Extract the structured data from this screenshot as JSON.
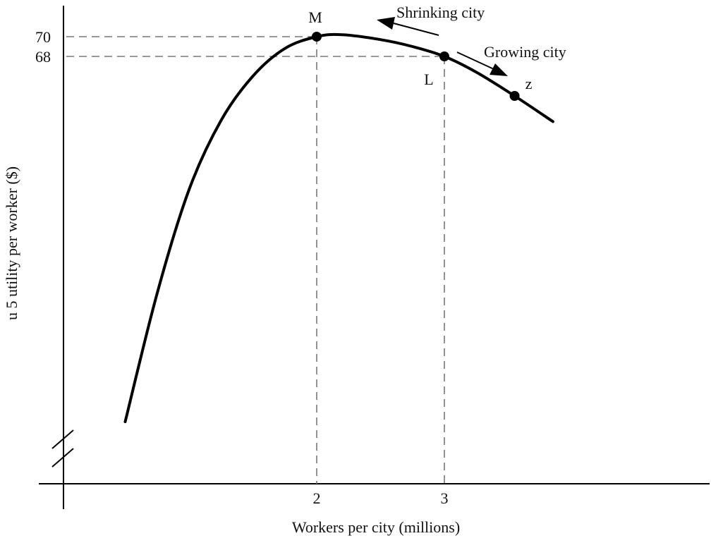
{
  "chart_data": {
    "type": "line",
    "title": "",
    "xlabel": "Workers per city (millions)",
    "ylabel": "u 5 utility per worker ($)",
    "xlim": [
      0.0,
      5.0
    ],
    "ylim": [
      0,
      70
    ],
    "x_ticks": [
      {
        "value": 2,
        "label": "2"
      },
      {
        "value": 3,
        "label": "3"
      }
    ],
    "y_ticks": [
      {
        "value": 70,
        "label": "70"
      },
      {
        "value": 68,
        "label": "68"
      }
    ],
    "grid": false,
    "axis_break": "y-axis",
    "series": [
      {
        "x": [
          0.5,
          0.75,
          1.0,
          1.25,
          1.5,
          1.75,
          2.0,
          2.2,
          2.5,
          2.75,
          3.0,
          3.25,
          3.55,
          3.85
        ],
        "y": [
          31,
          44,
          54.5,
          61.5,
          66,
          68.8,
          70,
          70.2,
          69.7,
          69,
          68,
          66.4,
          64,
          61.4
        ]
      }
    ],
    "points": [
      {
        "label": "M",
        "x": 2.0,
        "y": 70
      },
      {
        "label": "L",
        "x": 3.0,
        "y": 68
      },
      {
        "label": "z",
        "x": 3.55,
        "y": 64
      }
    ],
    "annotations": [
      {
        "text": "Shrinking city",
        "direction": "left"
      },
      {
        "text": "Growing city",
        "direction": "right"
      }
    ]
  }
}
